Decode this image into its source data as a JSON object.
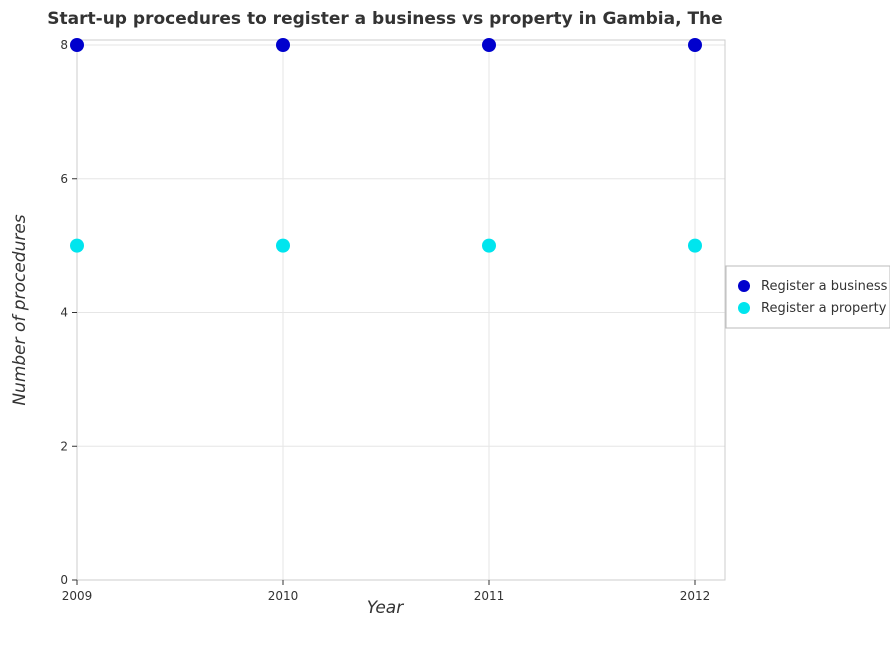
{
  "chart_data": {
    "type": "scatter",
    "title": "Start-up procedures to register a business vs property in Gambia, The",
    "xlabel": "Year",
    "ylabel": "Number of procedures",
    "categories": [
      "2009",
      "2010",
      "2011",
      "2012"
    ],
    "ylim": [
      0,
      8
    ],
    "yticks": [
      "0",
      "2",
      "4",
      "6",
      "8"
    ],
    "grid": true,
    "legend_position": "right",
    "series": [
      {
        "name": "Register a business",
        "color": "#0000cd",
        "values": [
          8,
          8,
          8,
          8
        ]
      },
      {
        "name": "Register a property",
        "color": "#00e5ee",
        "values": [
          5,
          5,
          5,
          5
        ]
      }
    ]
  }
}
